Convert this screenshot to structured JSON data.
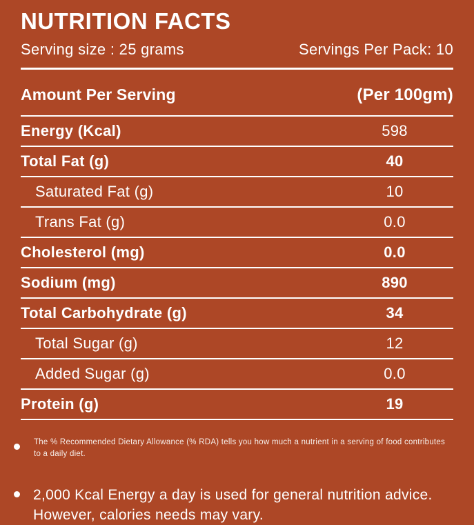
{
  "theme": {
    "background": "#AD4726",
    "text": "#FFFFFF",
    "rule": "#FFFFFF"
  },
  "header": {
    "title": "NUTRITION FACTS",
    "serving_size": "Serving size : 25 grams",
    "servings_per_pack": "Servings Per Pack: 10"
  },
  "table": {
    "amount_per_serving": "Amount Per Serving",
    "per_100gm": "(Per 100gm)",
    "rows": [
      {
        "label": "Energy (Kcal)",
        "value": "598"
      },
      {
        "label": "Total Fat (g)",
        "value": "40"
      },
      {
        "label": "Saturated Fat (g)",
        "value": "10"
      },
      {
        "label": "Trans Fat (g)",
        "value": "0.0"
      },
      {
        "label": "Cholesterol (mg)",
        "value": "0.0"
      },
      {
        "label": "Sodium (mg)",
        "value": "890"
      },
      {
        "label": "Total Carbohydrate (g)",
        "value": "34"
      },
      {
        "label": "Total Sugar (g)",
        "value": "12"
      },
      {
        "label": "Added Sugar (g)",
        "value": "0.0"
      },
      {
        "label": "Protein (g)",
        "value": "19"
      }
    ]
  },
  "footnotes": {
    "rda_note": "The % Recommended Dietary Allowance (% RDA) tells you how much a nutrient in a serving of food contributes to a daily diet.",
    "energy_note": "2,000 Kcal Energy a day is used for general nutrition advice. However, calories needs may vary."
  }
}
